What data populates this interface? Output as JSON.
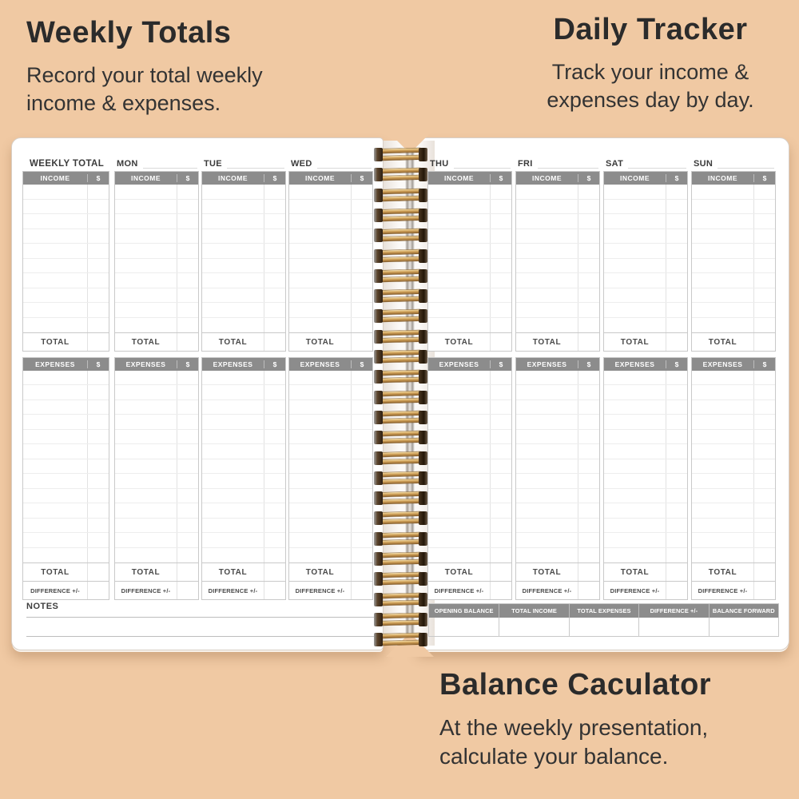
{
  "colors": {
    "background": "#f0c9a3",
    "header_bg": "#8c8c8c",
    "header_text": "#ffffff",
    "spiral_gold": "#d2a45c",
    "page": "#ffffff"
  },
  "annotations": {
    "weekly_totals": {
      "title": "Weekly Totals",
      "line1": "Record your total weekly",
      "line2": "income & expenses."
    },
    "daily_tracker": {
      "title": "Daily Tracker",
      "line1": "Track your income &",
      "line2": "expenses day by day."
    },
    "balance_calculator": {
      "title": "Balance Caculator",
      "line1": "At the weekly presentation,",
      "line2": "calculate your balance."
    }
  },
  "planner": {
    "weekly_total_label": "WEEKLY TOTAL",
    "left_days": [
      "MON",
      "TUE",
      "WED"
    ],
    "right_days": [
      "THU",
      "FRI",
      "SAT",
      "SUN"
    ],
    "income_label": "INCOME",
    "expenses_label": "EXPENSES",
    "dollar_sign": "$",
    "total_label": "TOTAL",
    "difference_label": "DIFFERENCE +/-",
    "notes_label": "NOTES",
    "income_rows": 10,
    "expense_rows": 13,
    "balance_columns": [
      "OPENING BALANCE",
      "TOTAL INCOME",
      "TOTAL EXPENSES",
      "DIFFERENCE +/-",
      "BALANCE FORWARD"
    ]
  }
}
